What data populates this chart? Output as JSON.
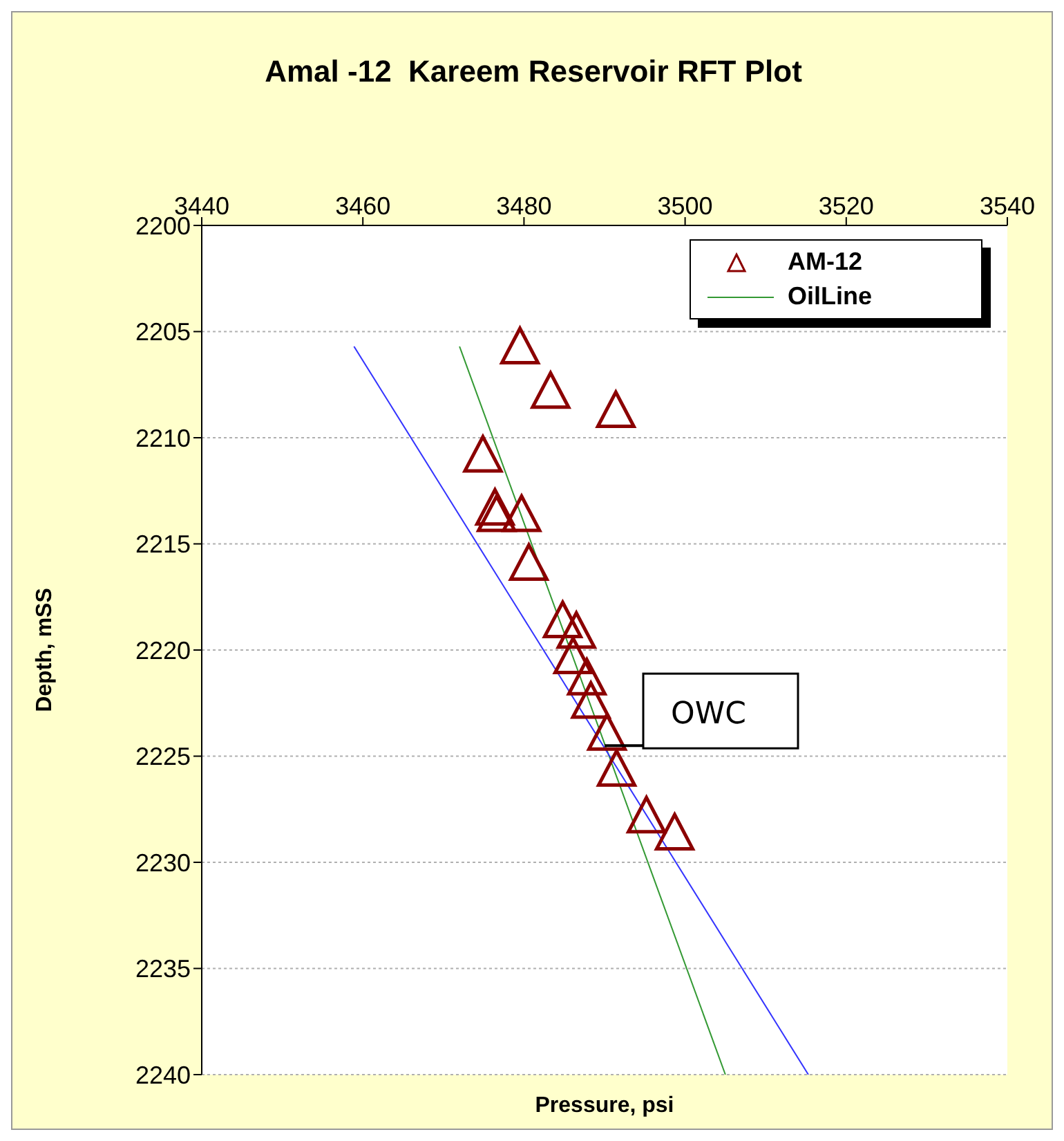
{
  "chart_data": {
    "type": "scatter",
    "title": "Amal -12  Kareem Reservoir RFT Plot",
    "xlabel": "Pressure, psi",
    "ylabel": "Depth, mSS",
    "xlim": [
      3440,
      3540
    ],
    "xticks": [
      3440,
      3460,
      3480,
      3500,
      3520,
      3540
    ],
    "ylim": [
      2240,
      2200
    ],
    "yticks": [
      2200,
      2205,
      2210,
      2215,
      2220,
      2225,
      2230,
      2235,
      2240
    ],
    "grid": "y",
    "legend": "top right",
    "marker": "triangle",
    "series": [
      {
        "name": "AM-12",
        "color": "#8b0000",
        "x": [
          3479.5,
          3483.3,
          3491.4,
          3474.9,
          3476.4,
          3476.6,
          3479.7,
          3480.6,
          3484.8,
          3486.5,
          3486.1,
          3487.8,
          3488.3,
          3490.3,
          3491.5,
          3495.2,
          3498.7
        ],
        "values": [
          2205.7,
          2207.8,
          2208.7,
          2210.8,
          2213.3,
          2213.6,
          2213.6,
          2215.9,
          2218.6,
          2219.1,
          2220.3,
          2221.3,
          2222.4,
          2223.9,
          2225.6,
          2227.8,
          2228.6
        ]
      },
      {
        "name": "OilLine",
        "type": "line",
        "marker": "none",
        "color": "#339933",
        "x": [
          3472.0,
          3505.0
        ],
        "values": [
          2205.7,
          2240
        ]
      },
      {
        "type": "line",
        "marker": "none",
        "color": "#3333ff",
        "x": [
          3458.9,
          3515.3
        ],
        "values": [
          2205.7,
          2240
        ]
      }
    ],
    "annotations": [
      {
        "text": "OWC",
        "x": 3490,
        "y": 2224.5
      }
    ]
  }
}
